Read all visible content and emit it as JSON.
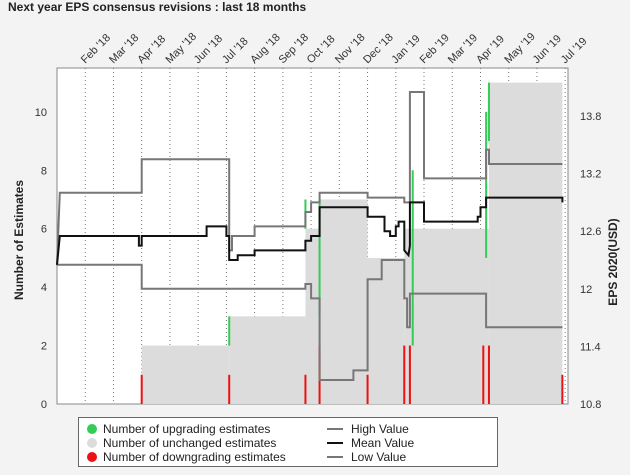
{
  "title": "Next year EPS consensus revisions : last 18 months",
  "chart_data": {
    "type": "bar",
    "x_ticks": [
      "Feb '18",
      "Mar '18",
      "Apr '18",
      "May '18",
      "Jun '18",
      "Jul '18",
      "Aug '18",
      "Sep '18",
      "Oct '18",
      "Nov '18",
      "Dec '18",
      "Jan '19",
      "Feb '19",
      "Mar '19",
      "Apr '19",
      "May '19",
      "Jun '19",
      "Jul '19"
    ],
    "y_left": {
      "label": "Number of Estimates",
      "ticks": [
        "0",
        "2",
        "4",
        "6",
        "8",
        "10"
      ],
      "range": [
        0,
        11.5
      ]
    },
    "y_right": {
      "label": "EPS 2020(USD)",
      "ticks": [
        "10.8",
        "11.4",
        "12",
        "12.6",
        "13.2",
        "13.8"
      ],
      "range": [
        10.8,
        14.3
      ]
    },
    "x_range": [
      0,
      18.1
    ],
    "unchanged": [
      [
        3.0,
        6.1,
        2
      ],
      [
        6.1,
        8.8,
        3
      ],
      [
        8.8,
        9.3,
        6
      ],
      [
        9.3,
        11.0,
        7
      ],
      [
        11.0,
        12.3,
        5
      ],
      [
        12.3,
        15.3,
        6
      ],
      [
        15.3,
        17.9,
        11
      ]
    ],
    "upgrading": [
      [
        6.1,
        2,
        3
      ],
      [
        8.8,
        6,
        7
      ],
      [
        9.3,
        3,
        7
      ],
      [
        12.6,
        2,
        8
      ],
      [
        15.2,
        5,
        10
      ],
      [
        15.3,
        9,
        11
      ]
    ],
    "downgrading": [
      [
        3.0,
        1
      ],
      [
        6.1,
        1
      ],
      [
        8.8,
        1
      ],
      [
        9.3,
        2
      ],
      [
        11.0,
        1
      ],
      [
        12.3,
        2
      ],
      [
        12.5,
        2
      ],
      [
        15.1,
        2
      ],
      [
        15.3,
        2
      ],
      [
        17.9,
        1
      ]
    ],
    "high_value": [
      [
        0.0,
        12.25
      ],
      [
        0.1,
        13.0
      ],
      [
        3.0,
        13.0
      ],
      [
        3.0,
        13.35
      ],
      [
        6.1,
        13.35
      ],
      [
        6.1,
        12.4
      ],
      [
        6.2,
        12.4
      ],
      [
        6.2,
        12.55
      ],
      [
        7.0,
        12.55
      ],
      [
        7.0,
        12.65
      ],
      [
        8.8,
        12.65
      ],
      [
        8.8,
        12.8
      ],
      [
        9.0,
        12.8
      ],
      [
        9.0,
        12.9
      ],
      [
        9.3,
        12.9
      ],
      [
        9.3,
        13.0
      ],
      [
        11.0,
        13.0
      ],
      [
        11.0,
        12.95
      ],
      [
        12.3,
        12.95
      ],
      [
        12.3,
        12.9
      ],
      [
        12.5,
        12.9
      ],
      [
        12.5,
        14.05
      ],
      [
        13.0,
        14.05
      ],
      [
        13.0,
        13.15
      ],
      [
        15.2,
        13.15
      ],
      [
        15.2,
        13.45
      ],
      [
        15.3,
        13.45
      ],
      [
        15.3,
        13.3
      ],
      [
        17.9,
        13.3
      ]
    ],
    "mean_value": [
      [
        0.0,
        12.25
      ],
      [
        0.1,
        12.55
      ],
      [
        2.9,
        12.55
      ],
      [
        2.9,
        12.45
      ],
      [
        3.0,
        12.45
      ],
      [
        3.0,
        12.55
      ],
      [
        5.3,
        12.55
      ],
      [
        5.3,
        12.65
      ],
      [
        6.0,
        12.65
      ],
      [
        6.0,
        12.55
      ],
      [
        6.1,
        12.55
      ],
      [
        6.1,
        12.3
      ],
      [
        6.4,
        12.3
      ],
      [
        6.4,
        12.35
      ],
      [
        7.0,
        12.35
      ],
      [
        7.0,
        12.4
      ],
      [
        8.8,
        12.4
      ],
      [
        8.8,
        12.5
      ],
      [
        9.0,
        12.5
      ],
      [
        9.0,
        12.55
      ],
      [
        9.3,
        12.55
      ],
      [
        9.3,
        12.85
      ],
      [
        11.0,
        12.85
      ],
      [
        11.0,
        12.75
      ],
      [
        11.6,
        12.75
      ],
      [
        11.6,
        12.6
      ],
      [
        11.8,
        12.6
      ],
      [
        11.8,
        12.55
      ],
      [
        12.0,
        12.55
      ],
      [
        12.0,
        12.65
      ],
      [
        12.1,
        12.65
      ],
      [
        12.1,
        12.7
      ],
      [
        12.3,
        12.7
      ],
      [
        12.3,
        12.4
      ],
      [
        12.45,
        12.35
      ],
      [
        12.5,
        12.45
      ],
      [
        12.5,
        12.9
      ],
      [
        13.0,
        12.9
      ],
      [
        13.0,
        12.7
      ],
      [
        14.9,
        12.7
      ],
      [
        14.9,
        12.75
      ],
      [
        15.0,
        12.75
      ],
      [
        15.0,
        12.85
      ],
      [
        15.2,
        12.85
      ],
      [
        15.2,
        12.95
      ],
      [
        16.1,
        12.95
      ],
      [
        16.1,
        12.95
      ],
      [
        17.9,
        12.95
      ],
      [
        17.9,
        12.9
      ]
    ],
    "low_value": [
      [
        0.0,
        12.25
      ],
      [
        0.1,
        12.25
      ],
      [
        3.0,
        12.25
      ],
      [
        3.0,
        12.0
      ],
      [
        6.1,
        12.0
      ],
      [
        6.2,
        12.0
      ],
      [
        8.8,
        12.0
      ],
      [
        8.8,
        12.05
      ],
      [
        9.0,
        12.05
      ],
      [
        9.0,
        11.9
      ],
      [
        9.3,
        11.9
      ],
      [
        9.3,
        11.05
      ],
      [
        9.5,
        11.05
      ],
      [
        10.5,
        11.05
      ],
      [
        10.5,
        11.15
      ],
      [
        11.0,
        11.15
      ],
      [
        11.0,
        12.1
      ],
      [
        11.5,
        12.1
      ],
      [
        11.5,
        12.3
      ],
      [
        12.3,
        12.3
      ],
      [
        12.3,
        11.9
      ],
      [
        12.4,
        11.9
      ],
      [
        12.4,
        11.6
      ],
      [
        12.5,
        11.6
      ],
      [
        12.5,
        11.95
      ],
      [
        15.2,
        11.95
      ],
      [
        15.2,
        11.6
      ],
      [
        17.9,
        11.6
      ]
    ],
    "legend": {
      "upgrading": "Number of upgrading estimates",
      "unchanged": "Number of unchanged estimates",
      "downgrading": "Number of downgrading estimates",
      "high": "High Value",
      "mean": "Mean Value",
      "low": "Low Value"
    },
    "colors": {
      "upgrading": "#33cc55",
      "unchanged": "#dcdcdc",
      "downgrading": "#ee1111",
      "high": "#777777",
      "mean": "#111111",
      "low": "#777777"
    },
    "grid": "vertical dotted"
  }
}
